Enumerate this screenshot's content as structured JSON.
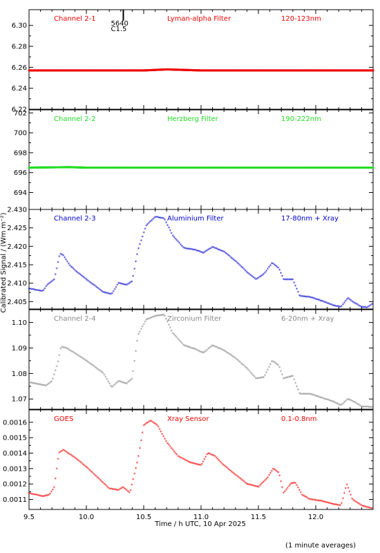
{
  "ylabel": "Calibrated Signal / (Wm m⁻²)",
  "xlabel": "Time / h UTC, 10 Apr 2025",
  "footnote": "(1 minute averages)",
  "xlim": [
    9.5,
    12.5
  ],
  "x_ticks": [
    "9.5",
    "10.0",
    "10.5",
    "11.0",
    "11.5",
    "12.0"
  ],
  "flare_marker": {
    "x": 10.28,
    "label_top": "5640",
    "label_bottom": "C1.5"
  },
  "chart_data": [
    {
      "type": "scatter",
      "channel": "Channel 2-1",
      "filter": "Lyman-alpha Filter",
      "band": "120-123nm",
      "color": "#ee0000",
      "ylim": [
        6.22,
        6.315
      ],
      "y_ticks": [
        "6.22",
        "6.24",
        "6.26",
        "6.28",
        "6.30"
      ],
      "y_tick_values": [
        6.22,
        6.24,
        6.26,
        6.28,
        6.3
      ],
      "points": [
        [
          9.5,
          6.257
        ],
        [
          10.0,
          6.257
        ],
        [
          10.5,
          6.257
        ],
        [
          10.7,
          6.258
        ],
        [
          11.0,
          6.257
        ],
        [
          11.5,
          6.257
        ],
        [
          12.0,
          6.257
        ],
        [
          12.5,
          6.257
        ]
      ]
    },
    {
      "type": "scatter",
      "channel": "Channel 2-2",
      "filter": "Herzberg Filter",
      "band": "190-222nm",
      "color": "#22dd22",
      "ylim": [
        692.3,
        702.3
      ],
      "y_ticks": [
        "694",
        "696",
        "698",
        "700",
        "702"
      ],
      "y_tick_values": [
        694,
        696,
        698,
        700,
        702
      ],
      "points": [
        [
          9.5,
          696.5
        ],
        [
          9.85,
          696.55
        ],
        [
          10.0,
          696.5
        ],
        [
          10.5,
          696.5
        ],
        [
          11.0,
          696.5
        ],
        [
          11.5,
          696.5
        ],
        [
          12.0,
          696.5
        ],
        [
          12.5,
          696.5
        ]
      ]
    },
    {
      "type": "scatter",
      "channel": "Channel 2-3",
      "filter": "Aluminium Filter",
      "band": "17-80nm + Xray",
      "color": "#0000cc",
      "ylim": [
        2.403,
        2.43
      ],
      "y_ticks": [
        "2.405",
        "2.410",
        "2.415",
        "2.420",
        "2.425",
        "2.430"
      ],
      "y_tick_values": [
        2.405,
        2.41,
        2.415,
        2.42,
        2.425,
        2.43
      ],
      "points": [
        [
          9.5,
          2.4085
        ],
        [
          9.62,
          2.4078
        ],
        [
          9.66,
          2.4095
        ],
        [
          9.72,
          2.411
        ],
        [
          9.77,
          2.418
        ],
        [
          9.8,
          2.4175
        ],
        [
          9.85,
          2.415
        ],
        [
          9.9,
          2.4135
        ],
        [
          10.0,
          2.411
        ],
        [
          10.15,
          2.4075
        ],
        [
          10.22,
          2.407
        ],
        [
          10.28,
          2.41
        ],
        [
          10.35,
          2.4095
        ],
        [
          10.4,
          2.4105
        ],
        [
          10.45,
          2.419
        ],
        [
          10.52,
          2.4255
        ],
        [
          10.6,
          2.428
        ],
        [
          10.68,
          2.4275
        ],
        [
          10.75,
          2.423
        ],
        [
          10.85,
          2.4195
        ],
        [
          10.95,
          2.419
        ],
        [
          11.02,
          2.4182
        ],
        [
          11.1,
          2.4198
        ],
        [
          11.2,
          2.4185
        ],
        [
          11.3,
          2.416
        ],
        [
          11.4,
          2.413
        ],
        [
          11.48,
          2.411
        ],
        [
          11.55,
          2.4125
        ],
        [
          11.62,
          2.4155
        ],
        [
          11.68,
          2.414
        ],
        [
          11.72,
          2.411
        ],
        [
          11.8,
          2.411
        ],
        [
          11.86,
          2.4065
        ],
        [
          11.95,
          2.4062
        ],
        [
          12.05,
          2.4052
        ],
        [
          12.15,
          2.404
        ],
        [
          12.22,
          2.4035
        ],
        [
          12.28,
          2.406
        ],
        [
          12.33,
          2.4048
        ],
        [
          12.4,
          2.4035
        ],
        [
          12.45,
          2.4034
        ],
        [
          12.5,
          2.4045
        ]
      ]
    },
    {
      "type": "scatter",
      "channel": "Channel 2-4",
      "filter": "Zirconium Filter",
      "band": "6-20nm + Xray",
      "color": "#888888",
      "ylim": [
        1.066,
        1.105
      ],
      "y_ticks": [
        "1.07",
        "1.08",
        "1.09",
        "1.10"
      ],
      "y_tick_values": [
        1.07,
        1.08,
        1.09,
        1.1
      ],
      "points": [
        [
          9.5,
          1.0765
        ],
        [
          9.65,
          1.0752
        ],
        [
          9.7,
          1.077
        ],
        [
          9.75,
          1.084
        ],
        [
          9.78,
          1.0905
        ],
        [
          9.82,
          1.09
        ],
        [
          9.88,
          1.0885
        ],
        [
          10.0,
          1.085
        ],
        [
          10.15,
          1.08
        ],
        [
          10.22,
          1.0745
        ],
        [
          10.28,
          1.077
        ],
        [
          10.35,
          1.076
        ],
        [
          10.4,
          1.078
        ],
        [
          10.45,
          1.095
        ],
        [
          10.52,
          1.101
        ],
        [
          10.6,
          1.1025
        ],
        [
          10.68,
          1.103
        ],
        [
          10.75,
          1.096
        ],
        [
          10.85,
          1.091
        ],
        [
          10.95,
          1.0895
        ],
        [
          11.02,
          1.088
        ],
        [
          11.1,
          1.091
        ],
        [
          11.2,
          1.089
        ],
        [
          11.3,
          1.086
        ],
        [
          11.4,
          1.082
        ],
        [
          11.48,
          1.078
        ],
        [
          11.55,
          1.0785
        ],
        [
          11.62,
          1.085
        ],
        [
          11.68,
          1.083
        ],
        [
          11.72,
          1.078
        ],
        [
          11.8,
          1.079
        ],
        [
          11.86,
          1.072
        ],
        [
          11.95,
          1.072
        ],
        [
          12.05,
          1.0705
        ],
        [
          12.15,
          1.069
        ],
        [
          12.22,
          1.0675
        ],
        [
          12.28,
          1.07
        ],
        [
          12.33,
          1.069
        ],
        [
          12.4,
          1.067
        ],
        [
          12.5,
          1.0668
        ]
      ]
    },
    {
      "type": "scatter",
      "channel": "GOES",
      "filter": "Xray Sensor",
      "band": "0.1-0.8nm",
      "color": "#ee0000",
      "ylim": [
        0.001035,
        0.00168
      ],
      "y_ticks": [
        "0.0011",
        "0.0012",
        "0.0013",
        "0.0014",
        "0.0015",
        "0.0016"
      ],
      "y_tick_values": [
        0.0011,
        0.0012,
        0.0013,
        0.0014,
        0.0015,
        0.0016
      ],
      "points": [
        [
          9.5,
          0.00114
        ],
        [
          9.62,
          0.00112
        ],
        [
          9.68,
          0.00113
        ],
        [
          9.72,
          0.00118
        ],
        [
          9.76,
          0.0014
        ],
        [
          9.8,
          0.00142
        ],
        [
          9.9,
          0.00137
        ],
        [
          10.0,
          0.00131
        ],
        [
          10.1,
          0.00124
        ],
        [
          10.2,
          0.00117
        ],
        [
          10.28,
          0.00116
        ],
        [
          10.32,
          0.00118
        ],
        [
          10.38,
          0.00114
        ],
        [
          10.45,
          0.00136
        ],
        [
          10.5,
          0.00158
        ],
        [
          10.56,
          0.00161
        ],
        [
          10.62,
          0.00158
        ],
        [
          10.7,
          0.00147
        ],
        [
          10.8,
          0.00138
        ],
        [
          10.9,
          0.00134
        ],
        [
          11.0,
          0.00132
        ],
        [
          11.06,
          0.0014
        ],
        [
          11.12,
          0.00138
        ],
        [
          11.2,
          0.00132
        ],
        [
          11.3,
          0.00126
        ],
        [
          11.4,
          0.0012
        ],
        [
          11.5,
          0.00118
        ],
        [
          11.58,
          0.00124
        ],
        [
          11.63,
          0.0013
        ],
        [
          11.68,
          0.00127
        ],
        [
          11.72,
          0.00114
        ],
        [
          11.78,
          0.0012
        ],
        [
          11.82,
          0.00121
        ],
        [
          11.88,
          0.00113
        ],
        [
          11.95,
          0.0011
        ],
        [
          12.05,
          0.00109
        ],
        [
          12.15,
          0.00107
        ],
        [
          12.22,
          0.00106
        ],
        [
          12.27,
          0.0012
        ],
        [
          12.32,
          0.0011
        ],
        [
          12.4,
          0.00106
        ],
        [
          12.5,
          0.00104
        ]
      ]
    }
  ]
}
